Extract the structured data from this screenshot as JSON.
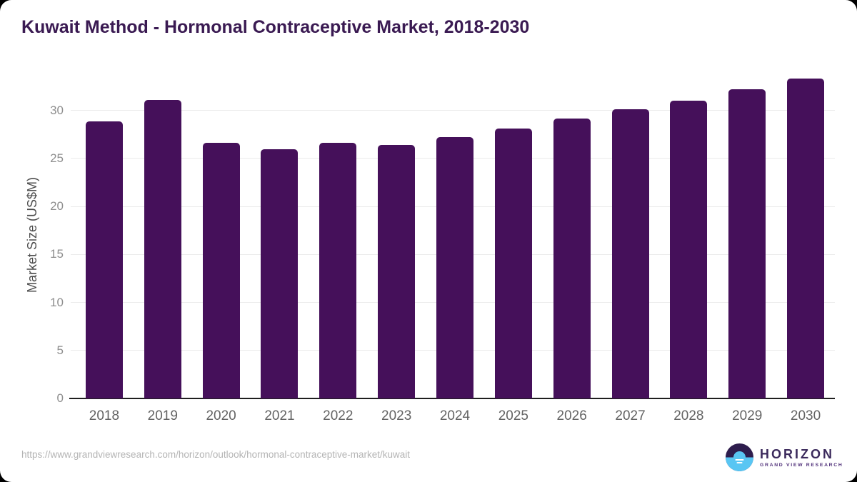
{
  "window": {
    "outer_background": "#000000",
    "card_background": "#ffffff"
  },
  "chart_data": {
    "type": "bar",
    "title": "Kuwait Method - Hormonal Contraceptive Market, 2018-2030",
    "title_color": "#3a1a52",
    "categories": [
      "2018",
      "2019",
      "2020",
      "2021",
      "2022",
      "2023",
      "2024",
      "2025",
      "2026",
      "2027",
      "2028",
      "2029",
      "2030"
    ],
    "values": [
      28.9,
      31.1,
      26.6,
      26.0,
      26.6,
      26.4,
      27.2,
      28.1,
      29.2,
      30.1,
      31.0,
      32.2,
      33.3
    ],
    "xlabel": "",
    "ylabel": "Market Size (US$M)",
    "ylim": [
      0,
      34
    ],
    "yticks": [
      0,
      5,
      10,
      15,
      20,
      25,
      30
    ],
    "grid": "horizontal-only",
    "legend": "none",
    "bar_color": "#45105a"
  },
  "footer": {
    "source_url": "https://www.grandviewresearch.com/horizon/outlook/hormonal-contraceptive-market/kuwait",
    "logo": {
      "brand": "HORIZON",
      "tagline": "GRAND VIEW RESEARCH",
      "icon": "horizon-sun-icon",
      "icon_top_color": "#2e1d4d",
      "icon_bottom_color": "#59c6f3",
      "text_color": "#3b2a5c",
      "tagline_color": "#50307a"
    }
  }
}
